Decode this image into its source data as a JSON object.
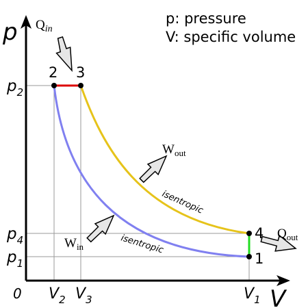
{
  "legend": {
    "pressure": "p: pressure",
    "volume": "V: specific volume"
  },
  "axes": {
    "y_label": "p",
    "x_label": "V",
    "origin": "0"
  },
  "ticks": {
    "p2": {
      "main": "p",
      "sub": "2"
    },
    "p4": {
      "main": "p",
      "sub": "4"
    },
    "p1": {
      "main": "p",
      "sub": "1"
    },
    "v2": {
      "main": "V",
      "sub": "2"
    },
    "v3": {
      "main": "V",
      "sub": "3"
    },
    "v1": {
      "main": "V",
      "sub": "1"
    }
  },
  "points": {
    "p1": "1",
    "p2": "2",
    "p3": "3",
    "p4": "4"
  },
  "process_labels": {
    "expansion": "isentropic",
    "compression": "isentropic"
  },
  "arrows": {
    "q_in": {
      "main": "Q",
      "sub": "in"
    },
    "q_out": {
      "main": "Q",
      "sub": "out"
    },
    "w_out": {
      "main": "W",
      "sub": "out"
    },
    "w_in": {
      "main": "W",
      "sub": "in"
    }
  },
  "colors": {
    "heat_addition": "#dd0000",
    "heat_rejection": "#22dd22",
    "expansion": "#e6c31a",
    "compression": "#8080f0",
    "axes": "#000000",
    "guides": "#999999",
    "arrow_fill": "#e6e6e6"
  }
}
